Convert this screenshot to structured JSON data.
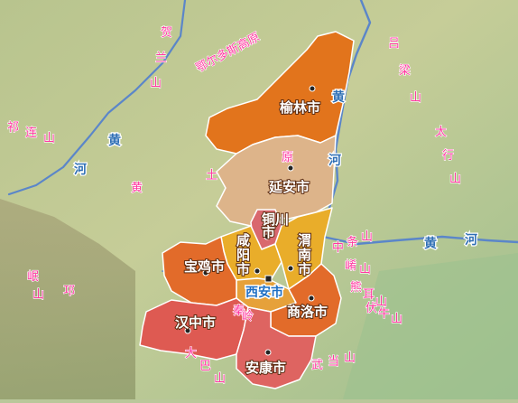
{
  "colors": {
    "yulin": "#e2741c",
    "yanan": "#ddb48a",
    "tongchuan": "#d9686e",
    "xianyang": "#e9ad2a",
    "weinan": "#e9ad2a",
    "xian": "#e6a13a",
    "baoji": "#e26b2a",
    "shangluo": "#e26b2a",
    "hanzhong": "#de5a52",
    "ankang": "#de6461",
    "river": "#5b86c9",
    "outline": "#8a3a10"
  },
  "cities": {
    "yulin": "榆林市",
    "yanan": "延安市",
    "tongchuan": "铜川市",
    "xianyang": "咸阳市",
    "weinan": "渭南市",
    "xian": "西安市",
    "baoji": "宝鸡市",
    "shangluo": "商洛市",
    "hanzhong": "汉中市",
    "ankang": "安康市"
  },
  "features": {
    "ordos": "鄂尔多斯高原",
    "helan": "贺兰山",
    "lvliang": "吕梁山",
    "taihang": "太行山",
    "qilian": "祁连山",
    "liupan": "六盘山",
    "gaoyuan": "高原",
    "zhongtiao": "中条山",
    "xiaoshan": "崤山",
    "xiong": "熊耳山",
    "funiu": "伏牛山",
    "qinling": "秦岭",
    "wudang": "武当山",
    "daba": "大巴山",
    "loess_huang": "黄",
    "loess_tu": "土",
    "min": "岷山",
    "qiong": "邛"
  },
  "rivers": {
    "huanghe_west": "黄河",
    "huanghe_east": "黄河",
    "huanghe_shanxi": "黄河"
  }
}
